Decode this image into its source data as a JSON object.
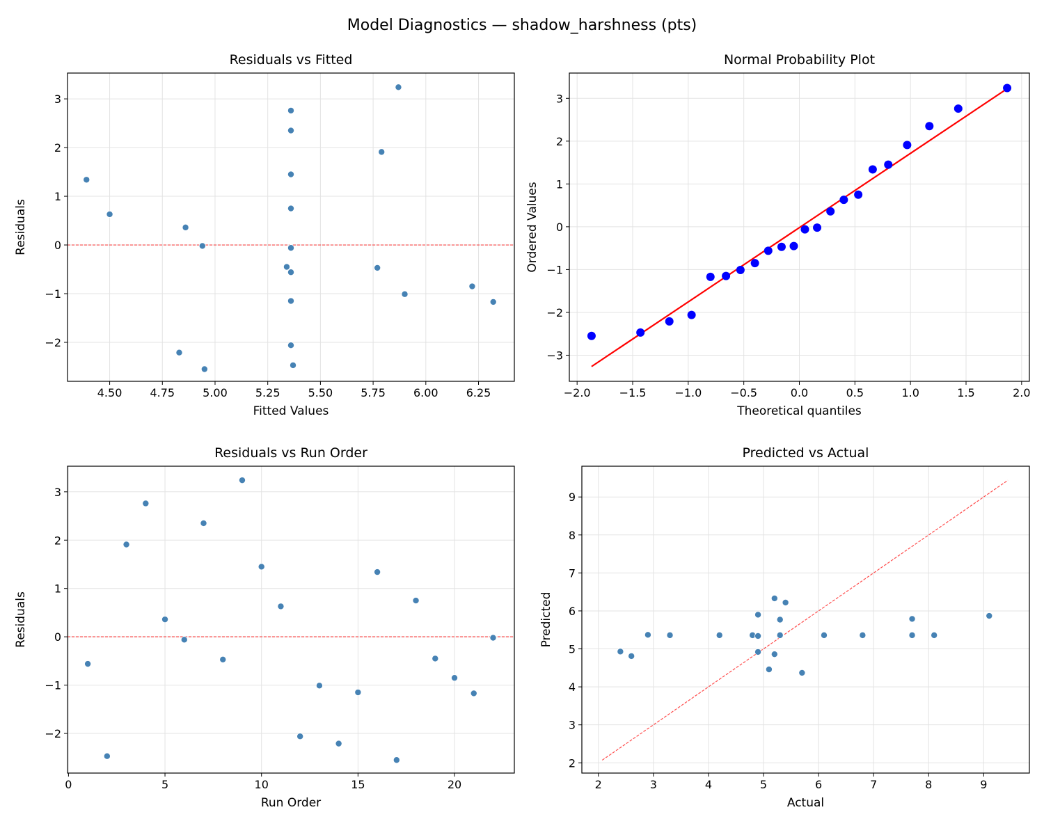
{
  "suptitle": "Model Diagnostics — shadow_harshness (pts)",
  "colors": {
    "point": "#4682b4",
    "qq_point": "#0000ff",
    "ref_line": "#ff0000"
  },
  "chart_data": [
    {
      "type": "scatter",
      "title": "Residuals vs Fitted",
      "xlabel": "Fitted Values",
      "ylabel": "Residuals",
      "xlim": [
        4.3,
        6.42
      ],
      "ylim": [
        -2.8,
        3.53
      ],
      "grid": true,
      "xticks": [
        4.5,
        4.75,
        5.0,
        5.25,
        5.5,
        5.75,
        6.0,
        6.25
      ],
      "xtick_labels": [
        "4.50",
        "4.75",
        "5.00",
        "5.25",
        "5.50",
        "5.75",
        "6.00",
        "6.25"
      ],
      "yticks": [
        -2,
        -1,
        0,
        1,
        2,
        3
      ],
      "ytick_labels": [
        "−2",
        "−1",
        "0",
        "1",
        "2",
        "3"
      ],
      "hline": 0,
      "x": [
        5.36,
        5.37,
        5.79,
        5.36,
        4.86,
        5.36,
        5.36,
        5.77,
        5.87,
        5.36,
        4.5,
        5.36,
        5.9,
        4.83,
        5.36,
        4.39,
        4.95,
        5.36,
        5.34,
        6.22,
        6.32,
        4.94
      ],
      "y": [
        -0.56,
        -2.47,
        1.91,
        2.76,
        0.36,
        -0.06,
        2.35,
        -0.47,
        3.24,
        1.45,
        0.63,
        -2.06,
        -1.01,
        -2.21,
        -1.15,
        1.34,
        -2.55,
        0.75,
        -0.45,
        -0.85,
        -1.17,
        -0.02
      ]
    },
    {
      "type": "scatter",
      "title": "Normal Probability Plot",
      "xlabel": "Theoretical quantiles",
      "ylabel": "Ordered Values",
      "xlim": [
        -2.07,
        2.07
      ],
      "ylim": [
        -3.61,
        3.59
      ],
      "grid": true,
      "xticks": [
        -2,
        -1.5,
        -1,
        -0.5,
        0,
        0.5,
        1,
        1.5,
        2
      ],
      "xtick_labels": [
        "−2.0",
        "−1.5",
        "−1.0",
        "−0.5",
        "0.0",
        "0.5",
        "1.0",
        "1.5",
        "2.0"
      ],
      "yticks": [
        -3,
        -2,
        -1,
        0,
        1,
        2,
        3
      ],
      "ytick_labels": [
        "−3",
        "−2",
        "−1",
        "0",
        "1",
        "2",
        "3"
      ],
      "x": [
        -1.87,
        -1.43,
        -1.17,
        -0.97,
        -0.8,
        -0.66,
        -0.53,
        -0.4,
        -0.28,
        -0.16,
        -0.05,
        0.05,
        0.16,
        0.28,
        0.4,
        0.53,
        0.66,
        0.8,
        0.97,
        1.17,
        1.43,
        1.87
      ],
      "y": [
        -2.55,
        -2.47,
        -2.21,
        -2.06,
        -1.17,
        -1.15,
        -1.01,
        -0.85,
        -0.56,
        -0.47,
        -0.45,
        -0.06,
        -0.02,
        0.36,
        0.63,
        0.75,
        1.34,
        1.45,
        1.91,
        2.35,
        2.76,
        3.24
      ],
      "fit_line": {
        "slope": 1.735,
        "intercept": -0.02
      }
    },
    {
      "type": "scatter",
      "title": "Residuals vs Run Order",
      "xlabel": "Run Order",
      "ylabel": "Residuals",
      "xlim": [
        -0.05,
        23.1
      ],
      "ylim": [
        -2.82,
        3.53
      ],
      "grid": true,
      "xticks": [
        0,
        5,
        10,
        15,
        20
      ],
      "xtick_labels": [
        "0",
        "5",
        "10",
        "15",
        "20"
      ],
      "yticks": [
        -2,
        -1,
        0,
        1,
        2,
        3
      ],
      "ytick_labels": [
        "−2",
        "−1",
        "0",
        "1",
        "2",
        "3"
      ],
      "hline": 0,
      "x": [
        1,
        2,
        3,
        4,
        5,
        6,
        7,
        8,
        9,
        10,
        11,
        12,
        13,
        14,
        15,
        16,
        17,
        18,
        19,
        20,
        21,
        22
      ],
      "y": [
        -0.56,
        -2.47,
        1.91,
        2.76,
        0.36,
        -0.06,
        2.35,
        -0.47,
        3.24,
        1.45,
        0.63,
        -2.06,
        -1.01,
        -2.21,
        -1.15,
        1.34,
        -2.55,
        0.75,
        -0.45,
        -0.85,
        -1.17,
        -0.02
      ]
    },
    {
      "type": "scatter",
      "title": "Predicted vs Actual",
      "xlabel": "Actual",
      "ylabel": "Predicted",
      "xlim": [
        1.7,
        9.83
      ],
      "ylim": [
        1.73,
        9.81
      ],
      "grid": true,
      "xticks": [
        2,
        3,
        4,
        5,
        6,
        7,
        8,
        9
      ],
      "xtick_labels": [
        "2",
        "3",
        "4",
        "5",
        "6",
        "7",
        "8",
        "9"
      ],
      "yticks": [
        2,
        3,
        4,
        5,
        6,
        7,
        8,
        9
      ],
      "ytick_labels": [
        "2",
        "3",
        "4",
        "5",
        "6",
        "7",
        "8",
        "9"
      ],
      "diagonal": [
        2.07,
        9.44
      ],
      "x": [
        4.8,
        2.9,
        7.7,
        8.1,
        5.2,
        5.3,
        7.7,
        5.3,
        9.1,
        6.8,
        5.1,
        3.3,
        4.9,
        2.6,
        4.2,
        5.7,
        2.4,
        6.1,
        4.9,
        5.4,
        5.2,
        4.9
      ],
      "y": [
        5.36,
        5.37,
        5.79,
        5.36,
        4.86,
        5.36,
        5.36,
        5.77,
        5.87,
        5.36,
        4.46,
        5.36,
        5.9,
        4.81,
        5.36,
        4.37,
        4.93,
        5.36,
        5.34,
        6.22,
        6.33,
        4.92
      ]
    }
  ]
}
